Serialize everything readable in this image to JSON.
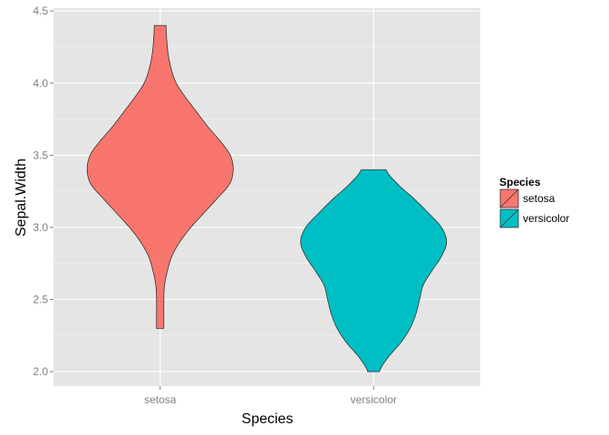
{
  "chart_data": {
    "type": "violin",
    "xlabel": "Species",
    "ylabel": "Sepal.Width",
    "categories": [
      "setosa",
      "versicolor"
    ],
    "ylim": [
      1.9,
      4.52
    ],
    "yticks": [
      "2.0",
      "2.5",
      "3.0",
      "3.5",
      "4.0",
      "4.5"
    ],
    "grid": true,
    "background": "#e5e5e5",
    "legend": {
      "title": "Species",
      "position": "right",
      "entries": [
        "setosa",
        "versicolor"
      ]
    },
    "series": [
      {
        "name": "setosa",
        "color": "#f8766d",
        "min": 2.3,
        "max": 4.4,
        "profile": [
          [
            2.3,
            0.05
          ],
          [
            2.4,
            0.05
          ],
          [
            2.5,
            0.05
          ],
          [
            2.6,
            0.06
          ],
          [
            2.7,
            0.1
          ],
          [
            2.8,
            0.16
          ],
          [
            2.9,
            0.27
          ],
          [
            3.0,
            0.42
          ],
          [
            3.1,
            0.6
          ],
          [
            3.2,
            0.78
          ],
          [
            3.3,
            0.95
          ],
          [
            3.4,
            1.0
          ],
          [
            3.5,
            0.96
          ],
          [
            3.6,
            0.82
          ],
          [
            3.7,
            0.65
          ],
          [
            3.8,
            0.5
          ],
          [
            3.9,
            0.35
          ],
          [
            4.0,
            0.22
          ],
          [
            4.1,
            0.15
          ],
          [
            4.2,
            0.11
          ],
          [
            4.3,
            0.09
          ],
          [
            4.4,
            0.08
          ]
        ]
      },
      {
        "name": "versicolor",
        "color": "#00bfc4",
        "min": 2.0,
        "max": 3.4,
        "profile": [
          [
            2.0,
            0.08
          ],
          [
            2.1,
            0.2
          ],
          [
            2.2,
            0.37
          ],
          [
            2.3,
            0.5
          ],
          [
            2.4,
            0.58
          ],
          [
            2.5,
            0.63
          ],
          [
            2.6,
            0.68
          ],
          [
            2.7,
            0.8
          ],
          [
            2.8,
            0.93
          ],
          [
            2.9,
            1.0
          ],
          [
            3.0,
            0.93
          ],
          [
            3.1,
            0.75
          ],
          [
            3.2,
            0.55
          ],
          [
            3.3,
            0.33
          ],
          [
            3.4,
            0.17
          ]
        ]
      }
    ]
  }
}
